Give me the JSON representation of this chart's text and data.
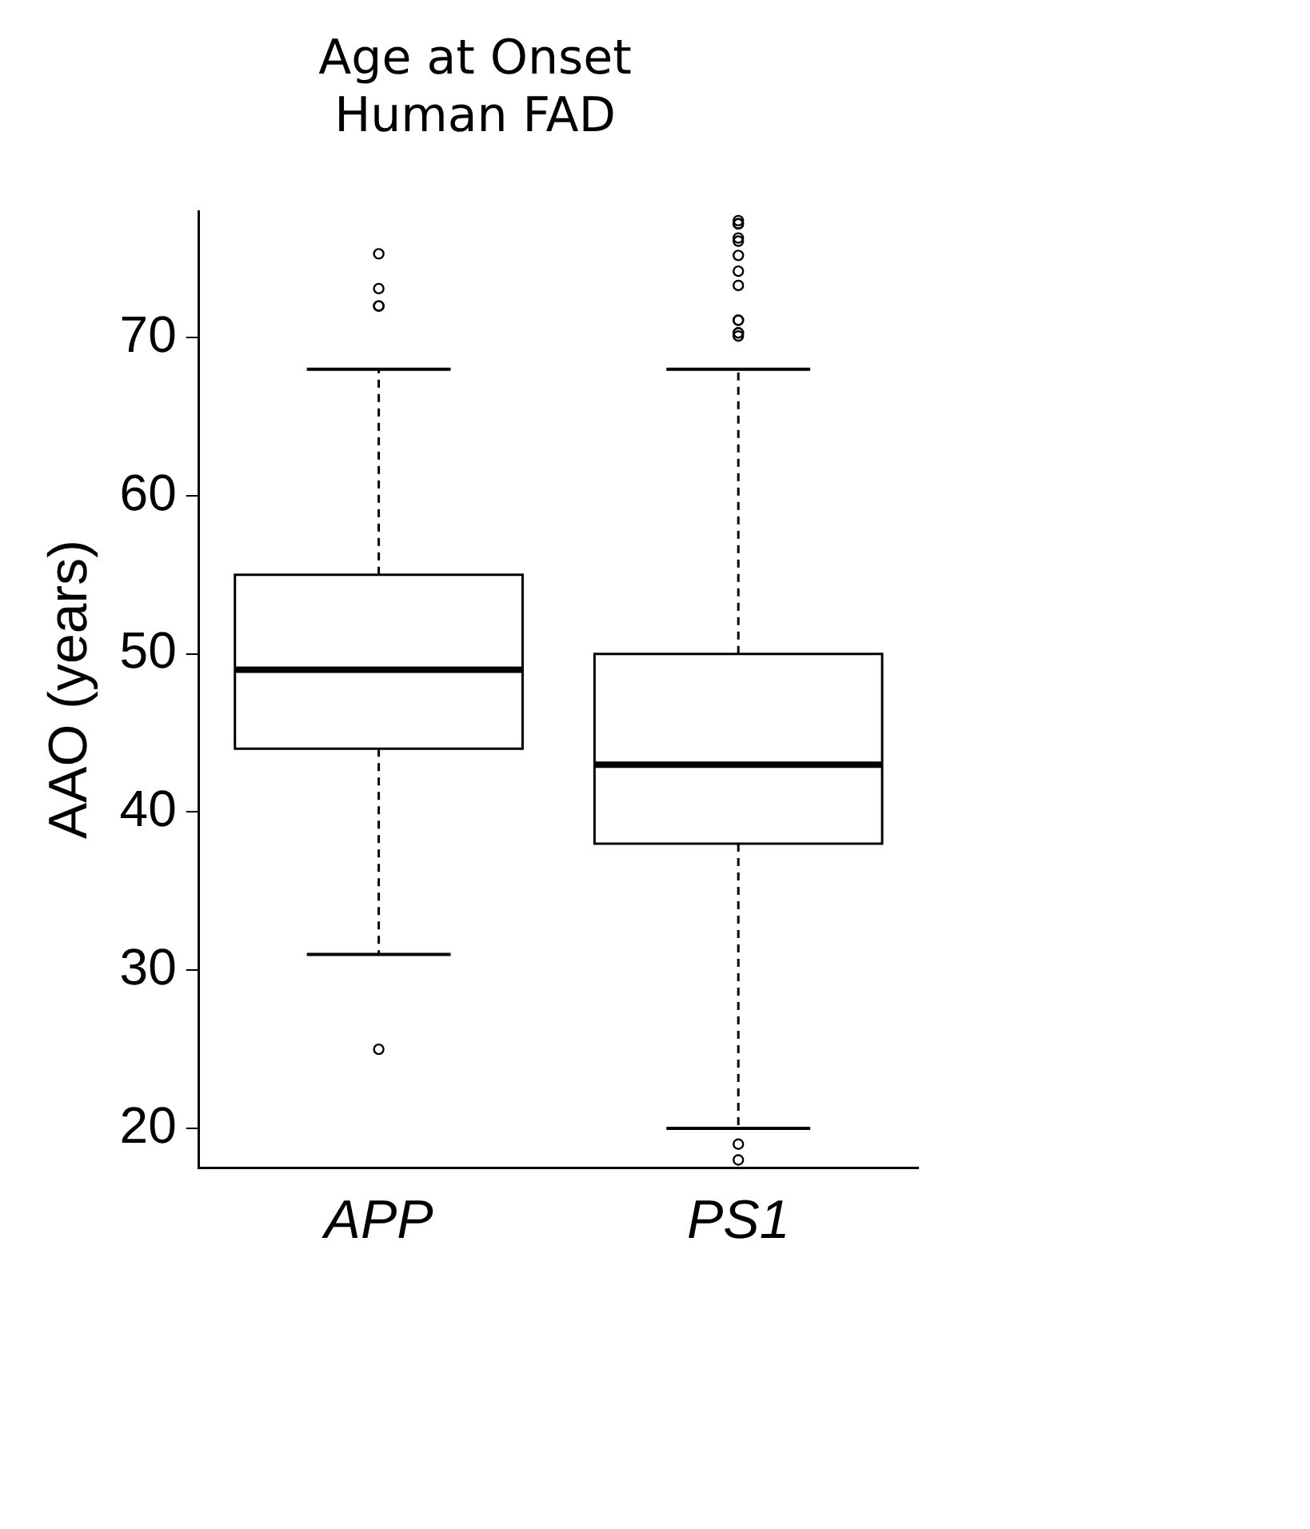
{
  "chart_data": {
    "type": "box",
    "title": "Age at Onset\nHuman FAD",
    "ylabel": "AAO (years)",
    "categories": [
      "APP",
      "PS1"
    ],
    "boxes": [
      {
        "low": 31,
        "q1": 44,
        "median": 49,
        "q3": 55,
        "high": 68,
        "outliers": [
          75.3,
          73.1,
          72,
          72,
          25
        ]
      },
      {
        "low": 20,
        "q1": 38,
        "median": 43,
        "q3": 50,
        "high": 68,
        "outliers": [
          77.4,
          77.2,
          77.2,
          76.3,
          76.1,
          75.2,
          74.2,
          73.3,
          71.1,
          71.1,
          70.3,
          70.3,
          70.1,
          19,
          18
        ]
      }
    ],
    "color": "#000000",
    "marker": "circle",
    "grid": false,
    "ylim": [
      17.5,
      78
    ],
    "yticks": [
      20,
      30,
      40,
      50,
      60,
      70
    ]
  }
}
